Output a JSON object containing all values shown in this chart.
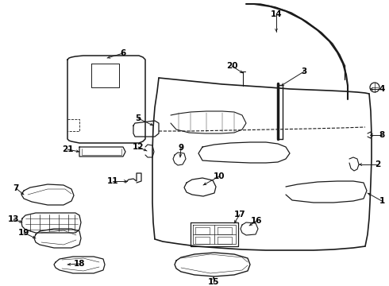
{
  "bg_color": "#ffffff",
  "line_color": "#1a1a1a",
  "figsize": [
    4.9,
    3.6
  ],
  "dpi": 100,
  "label_fontsize": 7.5,
  "label_color": "#000000"
}
